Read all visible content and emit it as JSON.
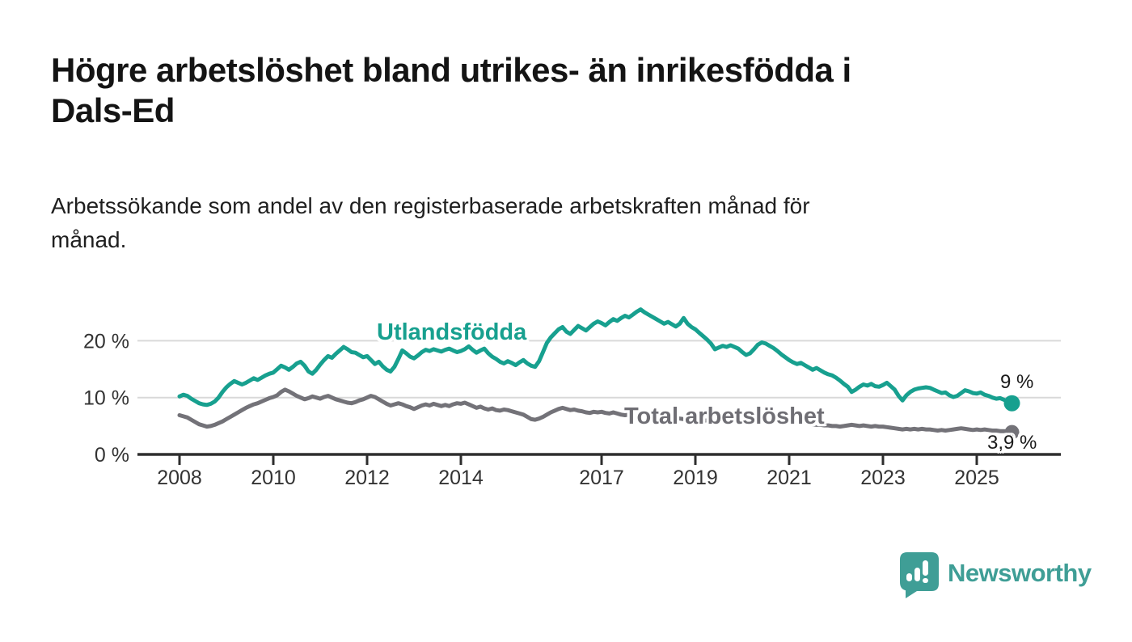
{
  "header": {
    "title_lines": [
      "Högre arbetslöshet bland utrikes- än inrikesfödda i",
      "Dals-Ed"
    ],
    "subtitle_lines": [
      "Arbetssökande som andel av den registerbaserade arbetskraften månad för",
      "månad."
    ]
  },
  "branding": {
    "logo_text": "Newsworthy",
    "logo_color": "#3f9e96"
  },
  "annotations": {
    "series_label_foreign_born": "Utlandsfödda",
    "series_label_total": "Total arbetslöshet",
    "end_label_foreign_born": "9 %",
    "end_label_total": "3,9 %"
  },
  "chart_data": {
    "type": "line",
    "title": "Arbetssökande som andel av den registerbaserade arbetskraften månad för månad",
    "x_unit": "month",
    "x_start": "2008-01",
    "x_end": "2025-10",
    "xlabel": "",
    "ylabel": "",
    "ylim": [
      0,
      27
    ],
    "grid": "horizontal-only",
    "legend_position": "inline-labels",
    "colors": {
      "foreign_born": "#17a08f",
      "total": "#737278",
      "gridline": "#d9d9d9",
      "axis": "#2e2e2e",
      "tick_text": "#333333"
    },
    "y_ticks": [
      {
        "value": 0,
        "label": "0 %"
      },
      {
        "value": 10,
        "label": "10 %"
      },
      {
        "value": 20,
        "label": "20 %"
      }
    ],
    "x_ticks": [
      {
        "value": 2008,
        "label": "2008"
      },
      {
        "value": 2010,
        "label": "2010"
      },
      {
        "value": 2012,
        "label": "2012"
      },
      {
        "value": 2014,
        "label": "2014"
      },
      {
        "value": 2017,
        "label": "2017"
      },
      {
        "value": 2019,
        "label": "2019"
      },
      {
        "value": 2021,
        "label": "2021"
      },
      {
        "value": 2023,
        "label": "2023"
      },
      {
        "value": 2025,
        "label": "2025"
      }
    ],
    "series": [
      {
        "name": "Utlandsfödda",
        "color": "#17a08f",
        "end_value_label": "9 %",
        "values": [
          10.2,
          10.5,
          10.3,
          9.8,
          9.4,
          9.0,
          8.8,
          8.7,
          8.9,
          9.3,
          10.0,
          11.0,
          11.8,
          12.4,
          12.9,
          12.6,
          12.3,
          12.6,
          13.0,
          13.4,
          13.1,
          13.5,
          13.9,
          14.2,
          14.4,
          15.0,
          15.6,
          15.3,
          14.9,
          15.4,
          16.0,
          16.3,
          15.6,
          14.6,
          14.2,
          14.9,
          15.8,
          16.6,
          17.3,
          17.0,
          17.7,
          18.3,
          18.9,
          18.5,
          18.0,
          17.9,
          17.5,
          17.1,
          17.3,
          16.6,
          15.9,
          16.3,
          15.5,
          14.9,
          14.6,
          15.4,
          16.8,
          18.3,
          17.8,
          17.2,
          16.9,
          17.4,
          18.0,
          18.4,
          18.2,
          18.5,
          18.3,
          18.1,
          18.4,
          18.6,
          18.3,
          18.0,
          18.2,
          18.5,
          19.0,
          18.4,
          17.9,
          18.3,
          18.6,
          17.8,
          17.2,
          16.8,
          16.3,
          16.0,
          16.4,
          16.1,
          15.7,
          16.2,
          16.6,
          16.0,
          15.6,
          15.4,
          16.4,
          18.0,
          19.6,
          20.6,
          21.3,
          22.0,
          22.4,
          21.6,
          21.2,
          21.9,
          22.6,
          22.2,
          21.8,
          22.4,
          23.0,
          23.4,
          23.1,
          22.7,
          23.3,
          23.8,
          23.5,
          24.0,
          24.4,
          24.1,
          24.6,
          25.1,
          25.5,
          25.0,
          24.6,
          24.2,
          23.8,
          23.4,
          23.0,
          23.3,
          22.9,
          22.5,
          23.0,
          24.0,
          23.0,
          22.4,
          22.0,
          21.4,
          20.8,
          20.2,
          19.5,
          18.5,
          18.8,
          19.1,
          18.9,
          19.2,
          18.9,
          18.6,
          18.0,
          17.5,
          17.8,
          18.5,
          19.3,
          19.7,
          19.5,
          19.1,
          18.7,
          18.2,
          17.6,
          17.1,
          16.6,
          16.2,
          15.9,
          16.1,
          15.7,
          15.3,
          14.9,
          15.2,
          14.8,
          14.4,
          14.1,
          13.9,
          13.5,
          13.0,
          12.4,
          11.9,
          11.0,
          11.4,
          11.9,
          12.3,
          12.1,
          12.4,
          12.0,
          11.9,
          12.2,
          12.6,
          12.0,
          11.4,
          10.3,
          9.5,
          10.4,
          11.0,
          11.4,
          11.6,
          11.7,
          11.8,
          11.7,
          11.4,
          11.1,
          10.8,
          10.9,
          10.4,
          10.1,
          10.3,
          10.8,
          11.3,
          11.1,
          10.8,
          10.7,
          10.9,
          10.5,
          10.3,
          10.0,
          9.8,
          9.9,
          9.6,
          9.3,
          9.0
        ]
      },
      {
        "name": "Total arbetslöshet",
        "color": "#737278",
        "end_value_label": "3,9 %",
        "values": [
          6.9,
          6.7,
          6.5,
          6.1,
          5.7,
          5.3,
          5.1,
          4.9,
          5.0,
          5.2,
          5.5,
          5.8,
          6.2,
          6.6,
          7.0,
          7.4,
          7.8,
          8.2,
          8.5,
          8.8,
          9.0,
          9.3,
          9.6,
          9.9,
          10.1,
          10.4,
          11.0,
          11.4,
          11.1,
          10.7,
          10.3,
          10.0,
          9.7,
          9.9,
          10.2,
          10.0,
          9.8,
          10.1,
          10.3,
          10.0,
          9.7,
          9.5,
          9.3,
          9.1,
          9.0,
          9.2,
          9.5,
          9.7,
          10.0,
          10.3,
          10.1,
          9.7,
          9.3,
          8.9,
          8.6,
          8.8,
          9.0,
          8.8,
          8.5,
          8.3,
          8.0,
          8.3,
          8.6,
          8.8,
          8.6,
          8.9,
          8.7,
          8.5,
          8.7,
          8.5,
          8.8,
          9.0,
          8.9,
          9.1,
          8.8,
          8.5,
          8.2,
          8.4,
          8.1,
          7.9,
          8.1,
          7.8,
          7.7,
          7.9,
          7.8,
          7.6,
          7.4,
          7.2,
          7.0,
          6.6,
          6.2,
          6.1,
          6.3,
          6.6,
          7.0,
          7.4,
          7.7,
          8.0,
          8.2,
          8.0,
          7.8,
          7.9,
          7.7,
          7.6,
          7.4,
          7.3,
          7.5,
          7.4,
          7.5,
          7.3,
          7.2,
          7.4,
          7.2,
          7.0,
          6.9,
          7.0,
          6.9,
          7.0,
          6.8,
          6.9,
          6.8,
          6.7,
          6.6,
          6.7,
          6.5,
          6.4,
          6.3,
          6.4,
          6.3,
          6.2,
          6.3,
          6.2,
          6.1,
          6.0,
          5.9,
          6.0,
          5.9,
          5.8,
          5.9,
          5.8,
          5.7,
          5.8,
          5.7,
          5.8,
          5.9,
          6.0,
          6.3,
          6.6,
          6.8,
          6.9,
          6.8,
          6.7,
          6.5,
          6.3,
          6.1,
          6.0,
          5.9,
          5.8,
          5.7,
          5.6,
          5.5,
          5.4,
          5.3,
          5.2,
          5.2,
          5.1,
          5.1,
          5.0,
          5.0,
          4.9,
          5.0,
          5.1,
          5.2,
          5.1,
          5.0,
          5.1,
          5.0,
          4.9,
          5.0,
          4.9,
          4.9,
          4.8,
          4.7,
          4.6,
          4.5,
          4.4,
          4.5,
          4.4,
          4.5,
          4.4,
          4.5,
          4.4,
          4.4,
          4.3,
          4.2,
          4.3,
          4.2,
          4.3,
          4.4,
          4.5,
          4.6,
          4.5,
          4.4,
          4.3,
          4.4,
          4.3,
          4.4,
          4.3,
          4.2,
          4.2,
          4.1,
          4.1,
          4.0,
          3.9
        ]
      }
    ]
  }
}
